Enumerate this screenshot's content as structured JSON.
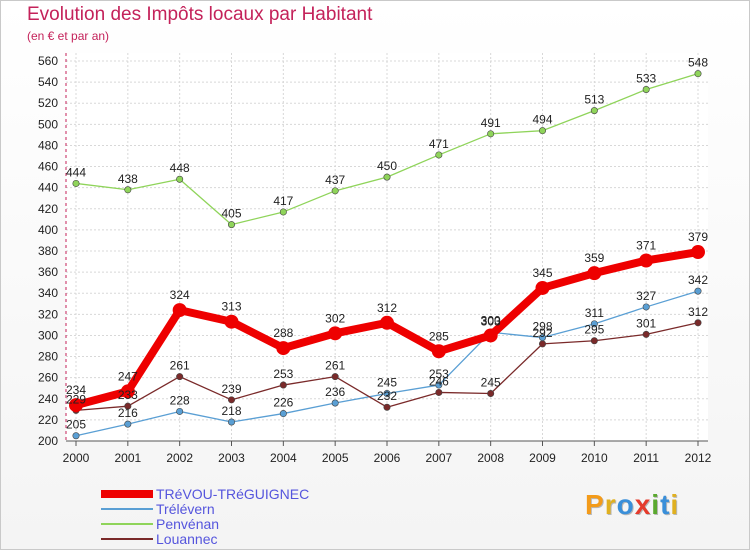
{
  "title": "Evolution des Impôts locaux par Habitant",
  "subtitle": "(en € et par an)",
  "logo": {
    "text": "Proxiti",
    "letter_colors": [
      "#f39b1a",
      "#e0b020",
      "#3a8fd9",
      "#e53b2c",
      "#5aa82e",
      "#3a8fd9",
      "#e0b020"
    ]
  },
  "chart_data": {
    "type": "line",
    "x": [
      "2000",
      "2001",
      "2002",
      "2003",
      "2004",
      "2005",
      "2006",
      "2007",
      "2008",
      "2009",
      "2010",
      "2011",
      "2012"
    ],
    "ylim": [
      200,
      560
    ],
    "yticks": [
      200,
      220,
      240,
      260,
      280,
      300,
      320,
      340,
      360,
      380,
      400,
      420,
      440,
      460,
      480,
      500,
      520,
      540,
      560
    ],
    "grid": true,
    "legend_position": "bottom-left",
    "series": [
      {
        "name": "TRéVOU-TRéGUIGNEC",
        "color": "#ee0000",
        "values": [
          234,
          247,
          324,
          313,
          288,
          302,
          312,
          285,
          300,
          345,
          359,
          371,
          379
        ]
      },
      {
        "name": "Trélévern",
        "color": "#5a9fd4",
        "values": [
          205,
          216,
          228,
          218,
          226,
          236,
          245,
          253,
          303,
          298,
          311,
          327,
          342
        ]
      },
      {
        "name": "Penvénan",
        "color": "#8fd45a",
        "values": [
          444,
          438,
          448,
          405,
          417,
          437,
          450,
          471,
          491,
          494,
          513,
          533,
          548
        ]
      },
      {
        "name": "Louannec",
        "color": "#7a2a2a",
        "values": [
          229,
          233,
          261,
          239,
          253,
          261,
          232,
          246,
          245,
          292,
          295,
          301,
          312
        ]
      }
    ]
  }
}
